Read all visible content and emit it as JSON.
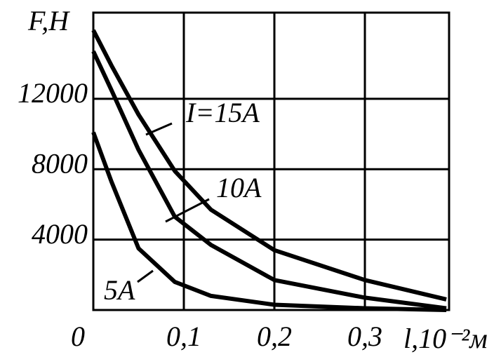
{
  "chart_data": {
    "type": "line",
    "y_label": "F,H",
    "x_label": "l,10⁻²м",
    "x": [
      0,
      0.02,
      0.05,
      0.09,
      0.13,
      0.2,
      0.3,
      0.39
    ],
    "series": [
      {
        "name": "I=15A",
        "color": "#000000",
        "values": [
          15900,
          13900,
          11100,
          7900,
          5700,
          3400,
          1700,
          600
        ]
      },
      {
        "name": "10A",
        "color": "#000000",
        "values": [
          14700,
          12500,
          9100,
          5300,
          3700,
          1700,
          700,
          100
        ]
      },
      {
        "name": "5A",
        "color": "#000000",
        "values": [
          10100,
          7300,
          3500,
          1600,
          800,
          300,
          100,
          0
        ]
      }
    ],
    "xlim": [
      0,
      0.393
    ],
    "ylim": [
      0,
      16900
    ],
    "xticks": [
      0,
      {
        "value": 0.1,
        "label": "0,1"
      },
      {
        "value": 0.2,
        "label": "0,2"
      },
      {
        "value": 0.3,
        "label": "0,3"
      }
    ],
    "yticks": [
      4000,
      8000,
      12000
    ],
    "grid": true
  }
}
